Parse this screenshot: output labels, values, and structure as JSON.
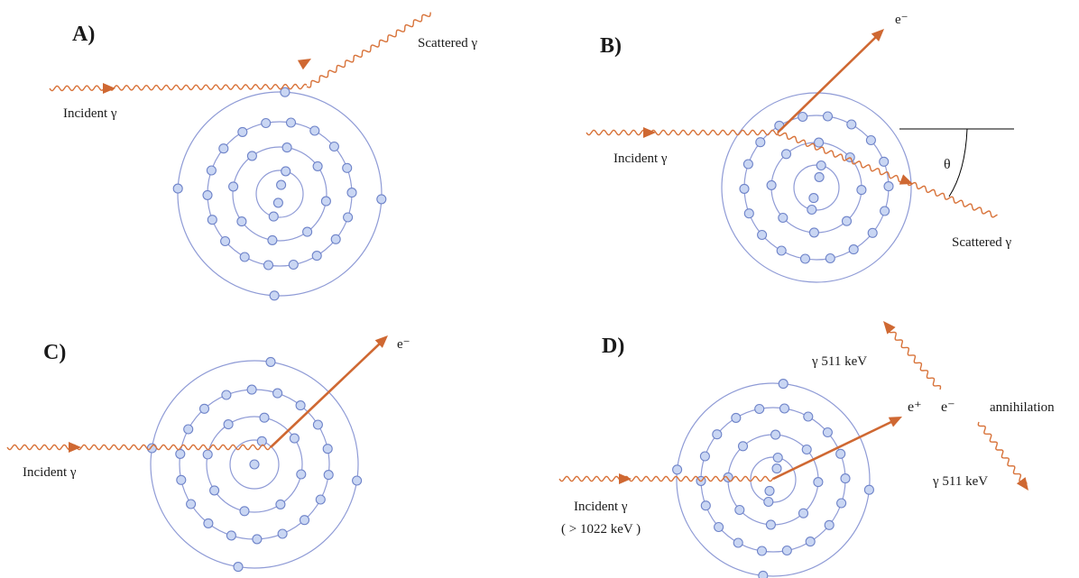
{
  "panels": {
    "a": {
      "label": "A)",
      "incident": "Incident γ",
      "scattered": "Scattered γ"
    },
    "b": {
      "label": "B)",
      "electron": "e⁻",
      "incident": "Incident γ",
      "scattered": "Scattered γ",
      "angle": "θ"
    },
    "c": {
      "label": "C)",
      "electron": "e⁻",
      "incident": "Incident γ"
    },
    "d": {
      "label": "D)",
      "gamma_top": "γ 511 keV",
      "positron": "e⁺",
      "electron": "e⁻",
      "annihilation": "annihilation",
      "gamma_bottom": "γ 511 keV",
      "incident": "Incident γ",
      "energy": "( > 1022 keV )"
    }
  },
  "colors": {
    "orbit": "#8f9bd6",
    "electron_fill": "#c9d6f3",
    "electron_stroke": "#6f84c9",
    "photon": "#d8733a",
    "arrow": "#cf6832"
  }
}
